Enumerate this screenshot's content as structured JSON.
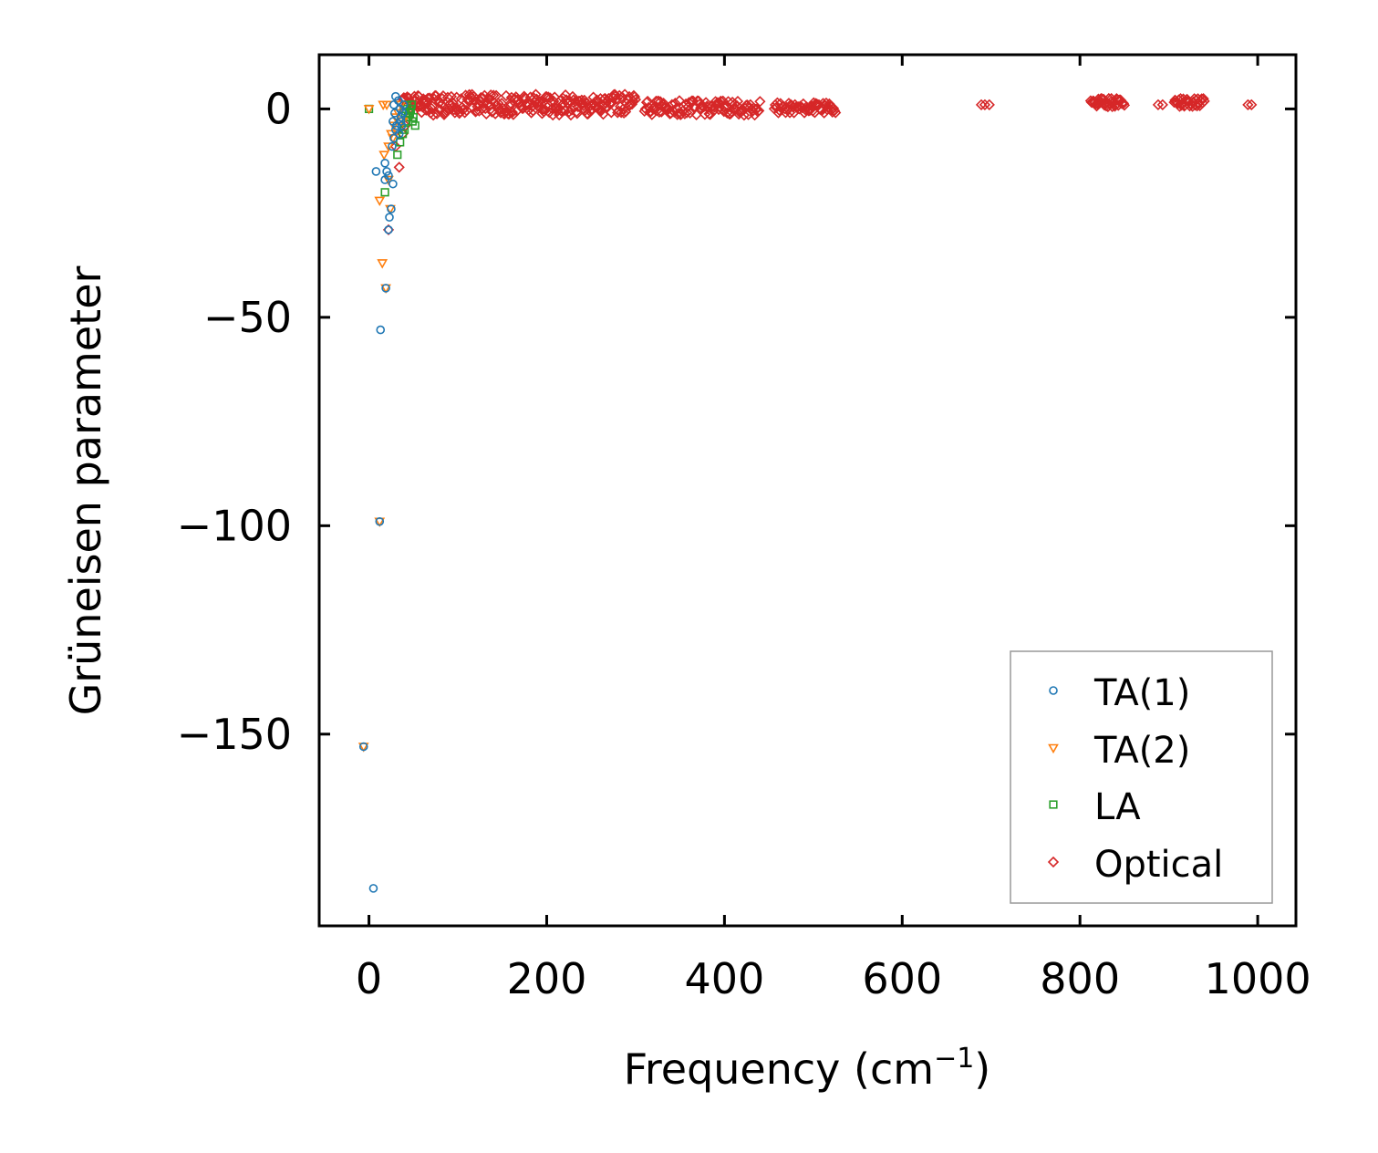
{
  "chart_data": {
    "type": "scatter",
    "title": "",
    "xlabel": "Frequency (cm",
    "xlabel_sup": "−1",
    "xlabel_close": ")",
    "ylabel": "Grüneisen parameter",
    "xlim": [
      -56,
      1043
    ],
    "ylim": [
      -196,
      13
    ],
    "xticks": [
      0,
      200,
      400,
      600,
      800,
      1000
    ],
    "xtick_labels": [
      "0",
      "200",
      "400",
      "600",
      "800",
      "1000"
    ],
    "yticks": [
      0,
      -50,
      -100,
      -150
    ],
    "ytick_labels": [
      "0",
      "−50",
      "−100",
      "−150"
    ],
    "grid": false,
    "legend_position": "lower-right",
    "series": [
      {
        "name": "TA(1)",
        "marker": "circle",
        "color": "#1f77b4",
        "points": [
          [
            5,
            -187
          ],
          [
            -6,
            -153
          ],
          [
            12,
            -99
          ],
          [
            13,
            -53
          ],
          [
            19,
            -43
          ],
          [
            22,
            -29
          ],
          [
            23,
            -26
          ],
          [
            25,
            -24
          ],
          [
            27,
            -18
          ],
          [
            22,
            -16
          ],
          [
            20,
            -15
          ],
          [
            18,
            -17
          ],
          [
            8,
            -15
          ],
          [
            18,
            -13
          ],
          [
            26,
            -9
          ],
          [
            28,
            -7
          ],
          [
            30,
            -5
          ],
          [
            27,
            -3
          ],
          [
            29,
            -1
          ],
          [
            28,
            1
          ],
          [
            30,
            3
          ],
          [
            33,
            2
          ],
          [
            35,
            0
          ],
          [
            36,
            -2
          ],
          [
            37,
            -4
          ],
          [
            34,
            -6
          ],
          [
            31,
            -4
          ],
          [
            39,
            1
          ],
          [
            38,
            -1
          ],
          [
            36,
            -3
          ]
        ]
      },
      {
        "name": "TA(2)",
        "marker": "triangle-down",
        "color": "#ff7f0e",
        "points": [
          [
            0,
            0
          ],
          [
            -6,
            -153
          ],
          [
            12,
            -99
          ],
          [
            15,
            -37
          ],
          [
            19,
            -43
          ],
          [
            12,
            -22
          ],
          [
            24,
            -24
          ],
          [
            22,
            -17
          ],
          [
            17,
            -11
          ],
          [
            22,
            -9
          ],
          [
            25,
            -6
          ],
          [
            28,
            -4
          ],
          [
            20,
            1
          ],
          [
            16,
            1
          ],
          [
            30,
            -2
          ],
          [
            33,
            -1
          ],
          [
            36,
            1
          ],
          [
            38,
            -3
          ],
          [
            27,
            -7
          ]
        ]
      },
      {
        "name": "LA",
        "marker": "square",
        "color": "#2ca02c",
        "points": [
          [
            0,
            0
          ],
          [
            18,
            -20
          ],
          [
            32,
            -11
          ],
          [
            35,
            -8
          ],
          [
            38,
            -6
          ],
          [
            40,
            -5
          ],
          [
            42,
            -3
          ],
          [
            44,
            -2
          ],
          [
            46,
            -1
          ],
          [
            47,
            0
          ],
          [
            48,
            1
          ],
          [
            50,
            -2
          ],
          [
            52,
            -4
          ],
          [
            45,
            -1
          ],
          [
            43,
            1
          ],
          [
            41,
            -1
          ],
          [
            39,
            0
          ],
          [
            49,
            -3
          ]
        ]
      },
      {
        "name": "Optical",
        "marker": "diamond",
        "color": "#d62728",
        "points": [
          [
            22,
            -29
          ],
          [
            34,
            -14
          ],
          [
            30,
            -9
          ],
          [
            38,
            -6
          ],
          [
            41,
            -4
          ],
          [
            45,
            -2
          ],
          [
            689,
            1
          ],
          [
            693,
            1
          ],
          [
            698,
            1
          ],
          [
            888,
            1
          ],
          [
            893,
            1
          ],
          [
            989,
            1
          ],
          [
            993,
            1
          ]
        ],
        "bands": [
          {
            "x_start": 38,
            "x_end": 300,
            "y_min": -1.5,
            "y_max": 3.5,
            "count": 260
          },
          {
            "x_start": 310,
            "x_end": 440,
            "y_min": -1.5,
            "y_max": 2.0,
            "count": 110
          },
          {
            "x_start": 456,
            "x_end": 525,
            "y_min": -1.0,
            "y_max": 1.5,
            "count": 60
          },
          {
            "x_start": 812,
            "x_end": 850,
            "y_min": 0.5,
            "y_max": 2.5,
            "count": 40
          },
          {
            "x_start": 906,
            "x_end": 940,
            "y_min": 0.5,
            "y_max": 2.5,
            "count": 34
          }
        ]
      }
    ]
  }
}
